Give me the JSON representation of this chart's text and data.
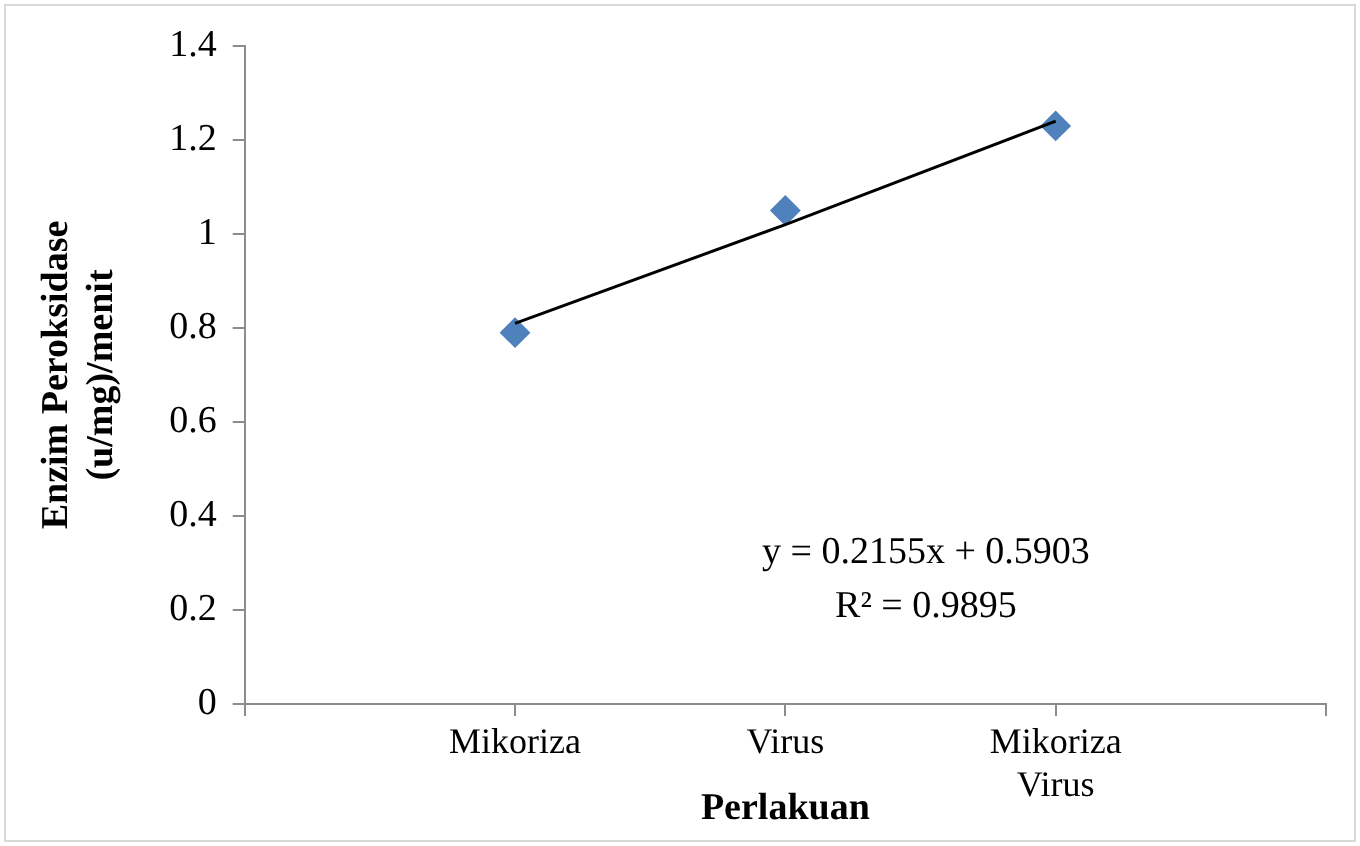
{
  "chart_data": {
    "type": "scatter",
    "xlabel": "Perlakuan",
    "ylabel": "Enzim Peroksidase (u/mg)/menit",
    "categories": [
      "Mikoriza",
      "Virus",
      "Mikoriza Virus"
    ],
    "series": [
      {
        "type": "scatter",
        "color": "#4f81bd",
        "marker": "diamond",
        "values": [
          0.79,
          1.05,
          1.23
        ]
      },
      {
        "type": "line",
        "color": "#000000",
        "marker": "none",
        "line_style": "solid",
        "values": [
          0.81,
          1.02,
          1.24
        ]
      }
    ],
    "ylim": [
      0,
      1.4
    ],
    "yticks": [
      0,
      0.2,
      0.4,
      0.6,
      0.8,
      1,
      1.2,
      1.4
    ],
    "grid": false,
    "legend": false,
    "annotations": [
      "y = 0.2155x + 0.5903",
      "R² = 0.9895"
    ]
  }
}
